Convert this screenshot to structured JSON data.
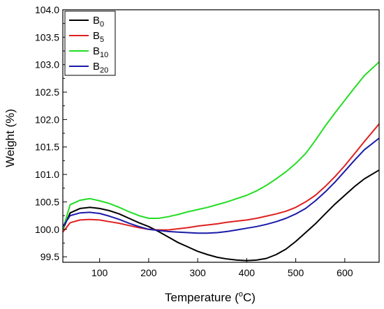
{
  "chart_data": {
    "type": "line",
    "xlabel": "Temperature (",
    "xlabel_sup": "o",
    "xlabel_tail": "C)",
    "ylabel": "Weight (%)",
    "xlim": [
      25,
      670
    ],
    "ylim": [
      99.4,
      104.0
    ],
    "xticks": [
      100,
      200,
      300,
      400,
      500,
      600
    ],
    "yticks": [
      99.5,
      100.0,
      100.5,
      101.0,
      101.5,
      102.0,
      102.5,
      103.0,
      103.5,
      104.0
    ],
    "ytick_labels": [
      "99.5",
      "100.0",
      "100.5",
      "101.0",
      "101.5",
      "102.0",
      "102.5",
      "103.0",
      "103.5",
      "104.0"
    ],
    "legend_position": "top-left",
    "series": [
      {
        "name": "B",
        "sub": "0",
        "color": "#000000",
        "x": [
          25,
          40,
          60,
          80,
          100,
          120,
          140,
          160,
          180,
          200,
          220,
          240,
          260,
          280,
          300,
          320,
          340,
          360,
          380,
          400,
          420,
          440,
          460,
          480,
          500,
          520,
          540,
          560,
          580,
          600,
          620,
          640,
          670
        ],
        "y": [
          100.0,
          100.3,
          100.38,
          100.4,
          100.38,
          100.34,
          100.28,
          100.2,
          100.12,
          100.05,
          99.96,
          99.86,
          99.76,
          99.68,
          99.6,
          99.54,
          99.49,
          99.46,
          99.44,
          99.43,
          99.44,
          99.47,
          99.54,
          99.64,
          99.78,
          99.94,
          100.1,
          100.28,
          100.46,
          100.62,
          100.78,
          100.92,
          101.08
        ]
      },
      {
        "name": "B",
        "sub": "5",
        "color": "#e02020",
        "x": [
          25,
          40,
          60,
          80,
          100,
          120,
          140,
          160,
          180,
          200,
          220,
          240,
          260,
          280,
          300,
          320,
          340,
          360,
          380,
          400,
          420,
          440,
          460,
          480,
          500,
          520,
          540,
          560,
          580,
          600,
          620,
          640,
          670
        ],
        "y": [
          99.95,
          100.12,
          100.17,
          100.18,
          100.17,
          100.14,
          100.11,
          100.07,
          100.03,
          100.0,
          99.99,
          99.99,
          100.01,
          100.03,
          100.06,
          100.08,
          100.1,
          100.13,
          100.15,
          100.17,
          100.2,
          100.24,
          100.28,
          100.33,
          100.4,
          100.5,
          100.62,
          100.78,
          100.96,
          101.16,
          101.38,
          101.6,
          101.92
        ]
      },
      {
        "name": "B",
        "sub": "10",
        "color": "#22dd22",
        "x": [
          25,
          40,
          60,
          80,
          100,
          120,
          140,
          160,
          180,
          200,
          220,
          240,
          260,
          280,
          300,
          320,
          340,
          360,
          380,
          400,
          420,
          440,
          460,
          480,
          500,
          520,
          540,
          560,
          580,
          600,
          620,
          640,
          670
        ],
        "y": [
          100.0,
          100.45,
          100.53,
          100.56,
          100.52,
          100.47,
          100.4,
          100.32,
          100.25,
          100.2,
          100.2,
          100.23,
          100.27,
          100.32,
          100.36,
          100.4,
          100.45,
          100.5,
          100.56,
          100.62,
          100.7,
          100.8,
          100.92,
          101.05,
          101.2,
          101.38,
          101.62,
          101.88,
          102.12,
          102.35,
          102.58,
          102.8,
          103.05
        ]
      },
      {
        "name": "B",
        "sub": "20",
        "color": "#1a1aaa",
        "x": [
          25,
          40,
          60,
          80,
          100,
          120,
          140,
          160,
          180,
          200,
          220,
          240,
          260,
          280,
          300,
          320,
          340,
          360,
          380,
          400,
          420,
          440,
          460,
          480,
          500,
          520,
          540,
          560,
          580,
          600,
          620,
          640,
          670
        ],
        "y": [
          100.05,
          100.25,
          100.3,
          100.31,
          100.29,
          100.24,
          100.18,
          100.11,
          100.05,
          100.0,
          99.98,
          99.96,
          99.95,
          99.94,
          99.93,
          99.93,
          99.94,
          99.96,
          99.99,
          100.02,
          100.05,
          100.09,
          100.14,
          100.2,
          100.28,
          100.38,
          100.52,
          100.68,
          100.86,
          101.06,
          101.26,
          101.45,
          101.66
        ]
      }
    ]
  }
}
